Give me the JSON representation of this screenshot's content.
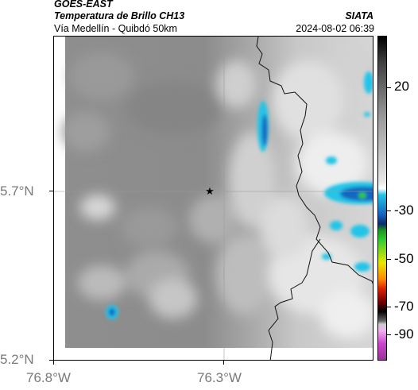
{
  "header": {
    "satellite": "GOES-EAST",
    "product": "Temperatura de Brillo CH13",
    "region": "Vía Medellín - Quibdó 50km",
    "agency": "SIATA",
    "datetime": "2024-08-02 06:39"
  },
  "axes": {
    "y_labels": [
      "5.7°N",
      "5.2°N"
    ],
    "x_labels": [
      "76.8°W",
      "76.3°W"
    ]
  },
  "colorbar": {
    "labels": [
      "20",
      "-30",
      "-50",
      "-70",
      "-90"
    ],
    "colors": {
      "warm_gray": "#8a8a8a",
      "cold_cyan": "#22c4e8",
      "cold_blue": "#1565c0",
      "green": "#33cc33",
      "yellow": "#e8e800",
      "red": "#dd2200",
      "magenta": "#cc44cc"
    }
  },
  "map": {
    "marker_icon": "star-icon"
  }
}
